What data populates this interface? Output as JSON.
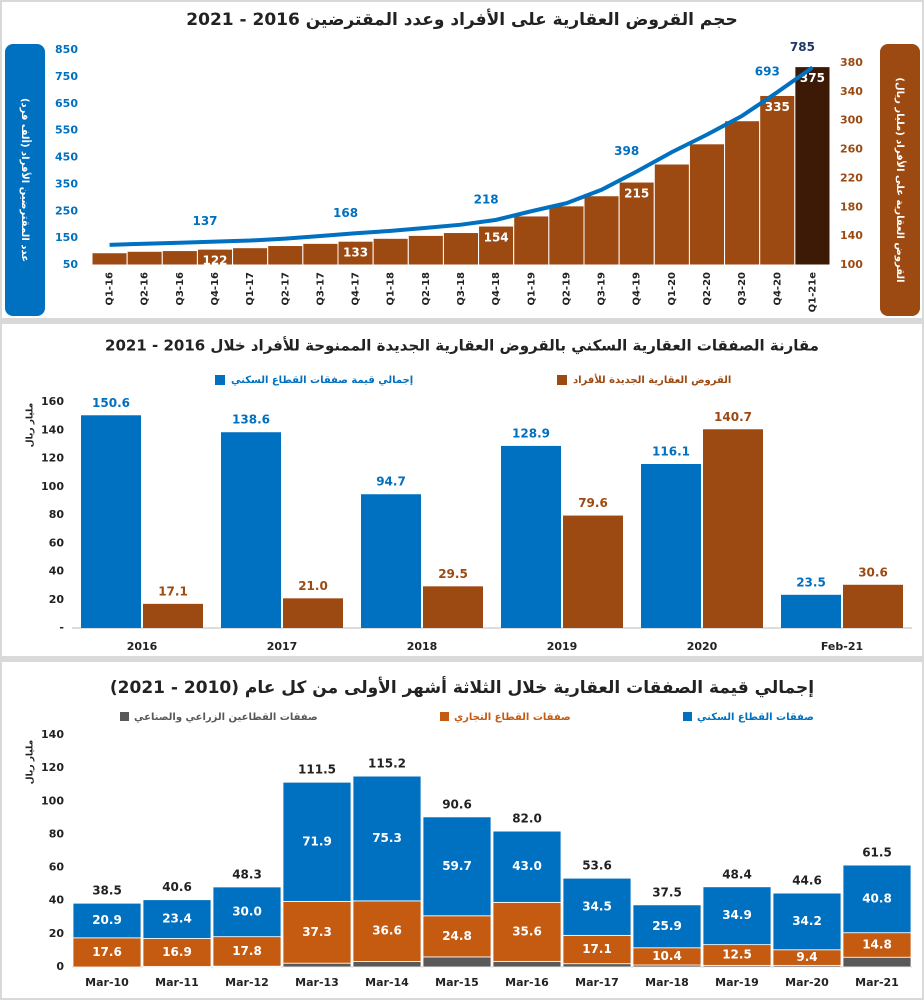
{
  "chart_data": [
    {
      "type": "combo",
      "title": "حجم القروض العقارية على الأفراد وعدد المقترضين 2016 - 2021",
      "y_label": "عدد المقترضين الأفراد (ألف فرد)",
      "y2_label": "القروض العقارية على الأفراد (مليار ريال)",
      "categories": [
        "Q1-16",
        "Q2-16",
        "Q3-16",
        "Q4-16",
        "Q1-17",
        "Q2-17",
        "Q3-17",
        "Q4-17",
        "Q1-18",
        "Q2-18",
        "Q3-18",
        "Q4-18",
        "Q1-19",
        "Q2-19",
        "Q3-19",
        "Q4-19",
        "Q1-20",
        "Q2-20",
        "Q3-20",
        "Q4-20",
        "Q1-21e"
      ],
      "ylim": [
        50,
        850
      ],
      "yticks": [
        50,
        150,
        250,
        350,
        450,
        550,
        650,
        750,
        850
      ],
      "y2lim": [
        100,
        380
      ],
      "y2ticks": [
        100,
        140,
        180,
        220,
        260,
        300,
        340,
        380
      ],
      "series": [
        {
          "type": "bar",
          "axis": "y2",
          "color": "#9c4a12",
          "colors": [
            "#9c4a12",
            "#9c4a12",
            "#9c4a12",
            "#9c4a12",
            "#9c4a12",
            "#9c4a12",
            "#9c4a12",
            "#9c4a12",
            "#9c4a12",
            "#9c4a12",
            "#9c4a12",
            "#9c4a12",
            "#9c4a12",
            "#9c4a12",
            "#9c4a12",
            "#9c4a12",
            "#9c4a12",
            "#9c4a12",
            "#9c4a12",
            "#9c4a12",
            "#3d1a06"
          ],
          "values": [
            117,
            119,
            120,
            122,
            124,
            127,
            130,
            133,
            137,
            141,
            145,
            154,
            168,
            182,
            196,
            215,
            240,
            268,
            300,
            335,
            375
          ],
          "value_labels": [
            null,
            null,
            null,
            "122",
            null,
            null,
            null,
            "133",
            null,
            null,
            null,
            "154",
            null,
            null,
            null,
            "215",
            null,
            null,
            null,
            "335",
            "375"
          ]
        },
        {
          "type": "line",
          "color": "#0070c0",
          "values": [
            125,
            129,
            133,
            137,
            141,
            148,
            158,
            168,
            177,
            188,
            200,
            218,
            250,
            280,
            330,
            398,
            470,
            535,
            605,
            693,
            785
          ],
          "value_labels": [
            null,
            null,
            null,
            "137",
            null,
            null,
            null,
            "168",
            null,
            null,
            null,
            "218",
            null,
            null,
            null,
            "398",
            null,
            null,
            null,
            "693",
            "785"
          ]
        }
      ]
    },
    {
      "type": "bar",
      "title": "مقارنة الصفقات العقارية السكني بالقروض العقارية الجديدة الممنوحة للأفراد خلال 2016 - 2021",
      "y_label": "مليار ريال",
      "categories": [
        "2016",
        "2017",
        "2018",
        "2019",
        "2020",
        "Feb-21"
      ],
      "ylim": [
        0,
        160
      ],
      "yticks": [
        {
          "value": 0,
          "label": "-"
        },
        20,
        40,
        60,
        80,
        100,
        120,
        140,
        160
      ],
      "grid": false,
      "series": [
        {
          "name": "إجمالي قيمة صفقات القطاع السكني",
          "color": "#0070c0",
          "values": [
            150.6,
            138.6,
            94.7,
            128.9,
            116.1,
            23.5
          ],
          "value_labels": [
            "150.6",
            "138.6",
            "94.7",
            "128.9",
            "116.1",
            "23.5"
          ]
        },
        {
          "name": "القروض العقارية الجديدة للأفراد",
          "color": "#9c4a12",
          "values": [
            17.1,
            21.0,
            29.5,
            79.6,
            140.7,
            30.6
          ],
          "value_labels": [
            "17.1",
            "21.0",
            "29.5",
            "79.6",
            "140.7",
            "30.6"
          ]
        }
      ]
    },
    {
      "type": "stacked-bar",
      "title": "إجمالي قيمة الصفقات العقارية خلال الثلاثة أشهر الأولى من كل عام (2010 - 2021)",
      "y_label": "مليار ريال",
      "categories": [
        "Mar-10",
        "Mar-11",
        "Mar-12",
        "Mar-13",
        "Mar-14",
        "Mar-15",
        "Mar-16",
        "Mar-17",
        "Mar-18",
        "Mar-19",
        "Mar-20",
        "Mar-21"
      ],
      "ylim": [
        0,
        140
      ],
      "yticks": [
        0,
        20,
        40,
        60,
        80,
        100,
        120,
        140
      ],
      "grid": false,
      "series": [
        {
          "name": "صفقات القطاعين الزراعي والصناعي",
          "color": "#595959",
          "values": [
            0.0,
            0.3,
            0.5,
            2.3,
            3.3,
            6.1,
            3.4,
            2.0,
            1.2,
            1.0,
            1.0,
            5.9
          ]
        },
        {
          "name": "صفقات القطاع التجاري",
          "color": "#c55a11",
          "values": [
            17.6,
            16.9,
            17.8,
            37.3,
            36.6,
            24.8,
            35.6,
            17.1,
            10.4,
            12.5,
            9.4,
            14.8
          ],
          "value_labels": [
            "17.6",
            "16.9",
            "17.8",
            "37.3",
            "36.6",
            "24.8",
            "35.6",
            "17.1",
            "10.4",
            "12.5",
            "9.4",
            "14.8"
          ]
        },
        {
          "name": "صفقات القطاع السكني",
          "color": "#0070c0",
          "values": [
            20.9,
            23.4,
            30.0,
            71.9,
            75.3,
            59.7,
            43.0,
            34.5,
            25.9,
            34.9,
            34.2,
            40.8
          ],
          "value_labels": [
            "20.9",
            "23.4",
            "30.0",
            "71.9",
            "75.3",
            "59.7",
            "43.0",
            "34.5",
            "25.9",
            "34.9",
            "34.2",
            "40.8"
          ]
        }
      ],
      "total_labels": [
        "38.5",
        "40.6",
        "48.3",
        "111.5",
        "115.2",
        "90.6",
        "82.0",
        "53.6",
        "37.5",
        "48.4",
        "44.6",
        "61.5"
      ]
    }
  ]
}
